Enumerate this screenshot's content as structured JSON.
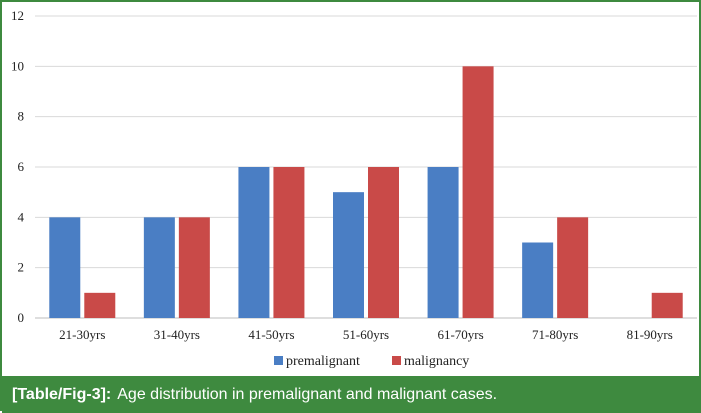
{
  "caption": {
    "label": "[Table/Fig-3]:",
    "text": "Age distribution in premalignant and malignant cases."
  },
  "chart_data": {
    "type": "bar",
    "title": "",
    "xlabel": "",
    "ylabel": "",
    "categories": [
      "21-30yrs",
      "31-40yrs",
      "41-50yrs",
      "51-60yrs",
      "61-70yrs",
      "71-80yrs",
      "81-90yrs"
    ],
    "series": [
      {
        "name": "premalignant",
        "color": "#4a7ec4",
        "values": [
          4,
          4,
          6,
          5,
          6,
          3,
          0
        ]
      },
      {
        "name": "malignancy",
        "color": "#c94a48",
        "values": [
          1,
          4,
          6,
          6,
          10,
          4,
          1
        ]
      }
    ],
    "ylim": [
      0,
      12
    ],
    "yticks": [
      0,
      2,
      4,
      6,
      8,
      10,
      12
    ],
    "grid": true,
    "legend_position": "bottom"
  }
}
